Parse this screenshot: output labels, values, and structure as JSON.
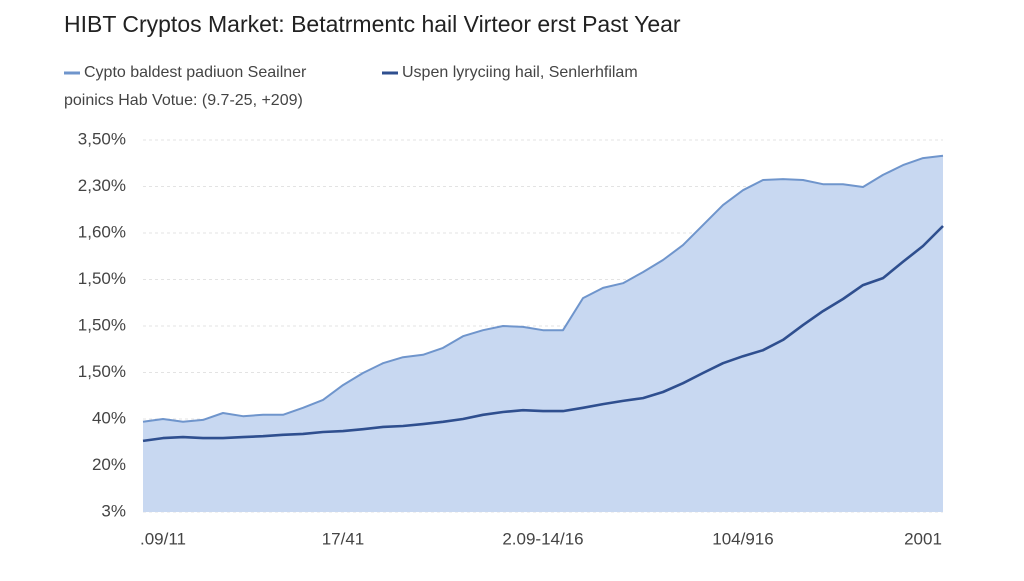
{
  "chart_data": {
    "type": "area",
    "title": "HIBT Cryptos Market: Betatrmentc hail Virteor erst Past Year",
    "subtitle": "poinics Hab Votue: (9.7-25, +209)",
    "x": [
      0,
      1,
      2,
      3,
      4,
      5,
      6,
      7,
      8,
      9,
      10,
      11,
      12,
      13,
      14,
      15,
      16,
      17,
      18,
      19,
      20,
      21,
      22,
      23,
      24,
      25,
      26,
      27,
      28,
      29,
      30,
      31,
      32,
      33,
      34,
      35,
      36,
      37,
      38,
      39,
      40
    ],
    "xlim": [
      0,
      40
    ],
    "xticks": [
      {
        "value": 1,
        "label": ".09/11"
      },
      {
        "value": 10,
        "label": "17/41"
      },
      {
        "value": 20,
        "label": "2.09-14/16"
      },
      {
        "value": 30,
        "label": "104/916"
      },
      {
        "value": 39,
        "label": "2001"
      }
    ],
    "ylim": [
      0,
      8
    ],
    "yticks": [
      {
        "value": 0,
        "label": "3%"
      },
      {
        "value": 1,
        "label": "20%"
      },
      {
        "value": 2,
        "label": "40%"
      },
      {
        "value": 3,
        "label": "1,50%"
      },
      {
        "value": 4,
        "label": "1,50%"
      },
      {
        "value": 5,
        "label": "1,50%"
      },
      {
        "value": 6,
        "label": "1,60%"
      },
      {
        "value": 7,
        "label": "2,30%"
      },
      {
        "value": 8,
        "label": "3,50%"
      }
    ],
    "grid": true,
    "series": [
      {
        "name": "Cypto baldest padiuon Seailner",
        "color": "#6f95cc",
        "fill": "#c8d8f1",
        "style": "area",
        "values": [
          1.94,
          2.0,
          1.94,
          1.98,
          2.13,
          2.06,
          2.09,
          2.09,
          2.24,
          2.41,
          2.73,
          2.99,
          3.2,
          3.33,
          3.38,
          3.53,
          3.78,
          3.91,
          4.0,
          3.98,
          3.91,
          3.91,
          4.6,
          4.82,
          4.92,
          5.16,
          5.42,
          5.74,
          6.17,
          6.6,
          6.92,
          7.14,
          7.16,
          7.14,
          7.05,
          7.05,
          6.99,
          7.25,
          7.46,
          7.61,
          7.66
        ]
      },
      {
        "name": "Uspen lyryciing hail, Senlerhfilam",
        "color": "#2f4f8f",
        "style": "line",
        "values": [
          1.53,
          1.59,
          1.61,
          1.59,
          1.59,
          1.61,
          1.63,
          1.66,
          1.68,
          1.72,
          1.74,
          1.78,
          1.83,
          1.85,
          1.89,
          1.94,
          2.0,
          2.09,
          2.15,
          2.19,
          2.17,
          2.17,
          2.24,
          2.32,
          2.39,
          2.45,
          2.58,
          2.77,
          2.99,
          3.2,
          3.35,
          3.48,
          3.7,
          4.02,
          4.32,
          4.58,
          4.88,
          5.03,
          5.38,
          5.72,
          6.15
        ]
      }
    ]
  }
}
